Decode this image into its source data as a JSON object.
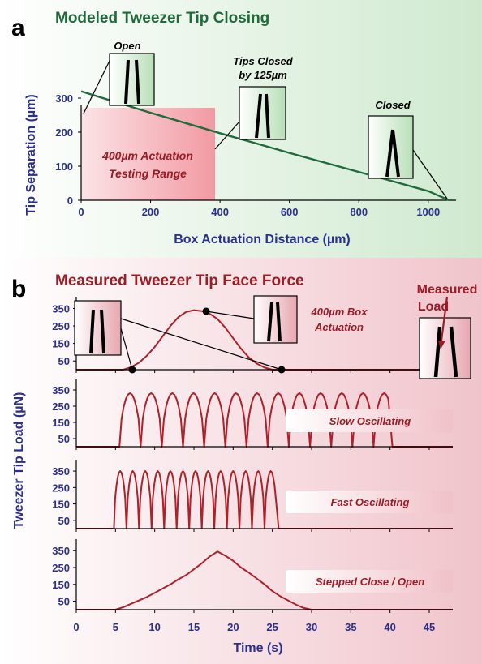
{
  "colors": {
    "green": "#1f6b3a",
    "green_bg": "#d9efd9",
    "red": "#b0202a",
    "red_bg": "#f3cfd3",
    "navy": "#2a2f8f",
    "range_fill": "#f2a0a8"
  },
  "chart_data": [
    {
      "type": "line",
      "panel": "a",
      "title": "Modeled Tweezer Tip Closing",
      "xlabel": "Box Actuation Distance (µm)",
      "ylabel": "Tip Separation (µm)",
      "xlim": [
        0,
        1080
      ],
      "ylim": [
        0,
        350
      ],
      "xticks": [
        "0",
        "200",
        "400",
        "600",
        "800",
        "1000"
      ],
      "yticks": [
        "0",
        "100",
        "200",
        "300"
      ],
      "series": [
        {
          "x": [
            0,
            100,
            200,
            300,
            400,
            500,
            600,
            700,
            800,
            900,
            1000,
            1060
          ],
          "y": [
            320,
            288,
            257,
            227,
            197,
            168,
            139,
            111,
            83,
            55,
            27,
            0
          ]
        }
      ],
      "shaded_range": {
        "x": [
          0,
          400
        ],
        "label_line1": "400µm Actuation",
        "label_line2": "Testing Range"
      },
      "annotations": {
        "open": "Open",
        "tips_closed_1": "Tips Closed",
        "tips_closed_2": "by 125µm",
        "closed": "Closed"
      }
    },
    {
      "type": "line",
      "panel": "b",
      "title": "Measured Tweezer Tip Face Force",
      "xlabel": "Time (s)",
      "ylabel": "Tweezer Tip Load (µN)",
      "xlim": [
        0,
        48
      ],
      "xticks": [
        "0",
        "5",
        "10",
        "15",
        "20",
        "25",
        "30",
        "35",
        "40",
        "45"
      ],
      "yticks": [
        "50",
        "150",
        "250",
        "350"
      ],
      "subplots": [
        {
          "name": "400µm Box Actuation",
          "label_line1": "400µm Box",
          "label_line2": "Actuation",
          "x": [
            0,
            6,
            7,
            8,
            9,
            10,
            11,
            12,
            13,
            14,
            15,
            16,
            17,
            18,
            19,
            20,
            21,
            22,
            23,
            24,
            25,
            26,
            48
          ],
          "y": [
            0,
            0,
            15,
            40,
            80,
            130,
            190,
            250,
            300,
            330,
            340,
            335,
            320,
            290,
            240,
            180,
            120,
            70,
            35,
            12,
            0,
            0,
            0
          ]
        },
        {
          "name": "Slow Oscillating",
          "pattern": "oscillation",
          "t_start": 5.5,
          "period": 2.7,
          "cycles": 13,
          "t_end": 40,
          "amplitude": 330
        },
        {
          "name": "Fast Oscillating",
          "pattern": "oscillation",
          "t_start": 4.8,
          "period": 1.6,
          "cycles": 13,
          "t_end": 25.5,
          "amplitude": 350
        },
        {
          "name": "Stepped Close / Open",
          "x": [
            0,
            5,
            6,
            7,
            8,
            9,
            10,
            11,
            12,
            13,
            14,
            15,
            16,
            17,
            18,
            19,
            20,
            21,
            22,
            23,
            24,
            25,
            26,
            27,
            28,
            29,
            30,
            48
          ],
          "y": [
            0,
            0,
            15,
            35,
            55,
            75,
            100,
            125,
            150,
            180,
            205,
            240,
            275,
            315,
            345,
            320,
            290,
            250,
            220,
            185,
            150,
            110,
            80,
            55,
            30,
            10,
            0,
            0
          ]
        }
      ],
      "annotations": {
        "measured_line1": "Measured",
        "measured_line2": "Load"
      }
    }
  ],
  "panel_labels": {
    "a": "a",
    "b": "b"
  }
}
